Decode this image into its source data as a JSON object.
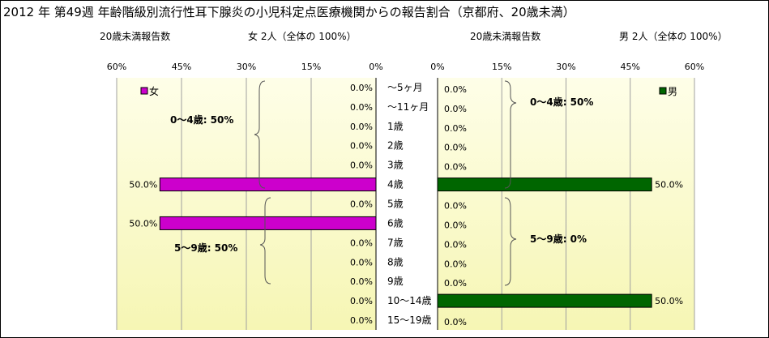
{
  "title": "2012 年  第49週 年齢階級別流行性耳下腺炎の小児科定点医療機関からの報告割合（京都府、20歳未満）",
  "subtitles": {
    "female_count_label": "20歳未満報告数",
    "female_summary": "女  2人（全体の  100%）",
    "male_count_label": "20歳未満報告数",
    "male_summary": "男  2人（全体の  100%）"
  },
  "colors": {
    "female": "#cc00cc",
    "male": "#006600",
    "plot_bg_top": "#fefee8",
    "plot_bg_bottom": "#f6f6b4"
  },
  "chart_data": [
    {
      "type": "bar",
      "orientation": "horizontal",
      "direction": "right-to-left",
      "categories": [
        "〜5ヶ月",
        "〜11ヶ月",
        "1歳",
        "2歳",
        "3歳",
        "4歳",
        "5歳",
        "6歳",
        "7歳",
        "8歳",
        "9歳",
        "10〜14歳",
        "15〜19歳"
      ],
      "series": [
        {
          "name": "女",
          "values": [
            0,
            0,
            0,
            0,
            0,
            50,
            0,
            50,
            0,
            0,
            0,
            0,
            0
          ]
        }
      ],
      "data_labels": [
        "0.0%",
        "0.0%",
        "0.0%",
        "0.0%",
        "0.0%",
        "50.0%",
        "0.0%",
        "50.0%",
        "0.0%",
        "0.0%",
        "0.0%",
        "0.0%",
        "0.0%"
      ],
      "xlim": [
        0,
        60
      ],
      "xticks": [
        "60%",
        "45%",
        "30%",
        "15%",
        "0%"
      ],
      "legend": "top-left",
      "grid": true,
      "annotations": [
        "0〜4歳: 50%",
        "5〜9歳:  50%"
      ]
    },
    {
      "type": "bar",
      "orientation": "horizontal",
      "direction": "left-to-right",
      "categories": [
        "〜5ヶ月",
        "〜11ヶ月",
        "1歳",
        "2歳",
        "3歳",
        "4歳",
        "5歳",
        "6歳",
        "7歳",
        "8歳",
        "9歳",
        "10〜14歳",
        "15〜19歳"
      ],
      "series": [
        {
          "name": "男",
          "values": [
            0,
            0,
            0,
            0,
            0,
            50,
            0,
            0,
            0,
            0,
            0,
            50,
            0
          ]
        }
      ],
      "data_labels": [
        "0.0%",
        "0.0%",
        "0.0%",
        "0.0%",
        "0.0%",
        "50.0%",
        "0.0%",
        "0.0%",
        "0.0%",
        "0.0%",
        "0.0%",
        "50.0%",
        "0.0%"
      ],
      "xlim": [
        0,
        60
      ],
      "xticks": [
        "0%",
        "15%",
        "30%",
        "45%",
        "60%"
      ],
      "legend": "top-right",
      "grid": true,
      "annotations": [
        "0〜4歳:  50%",
        "5〜9歳:   0%"
      ]
    }
  ]
}
